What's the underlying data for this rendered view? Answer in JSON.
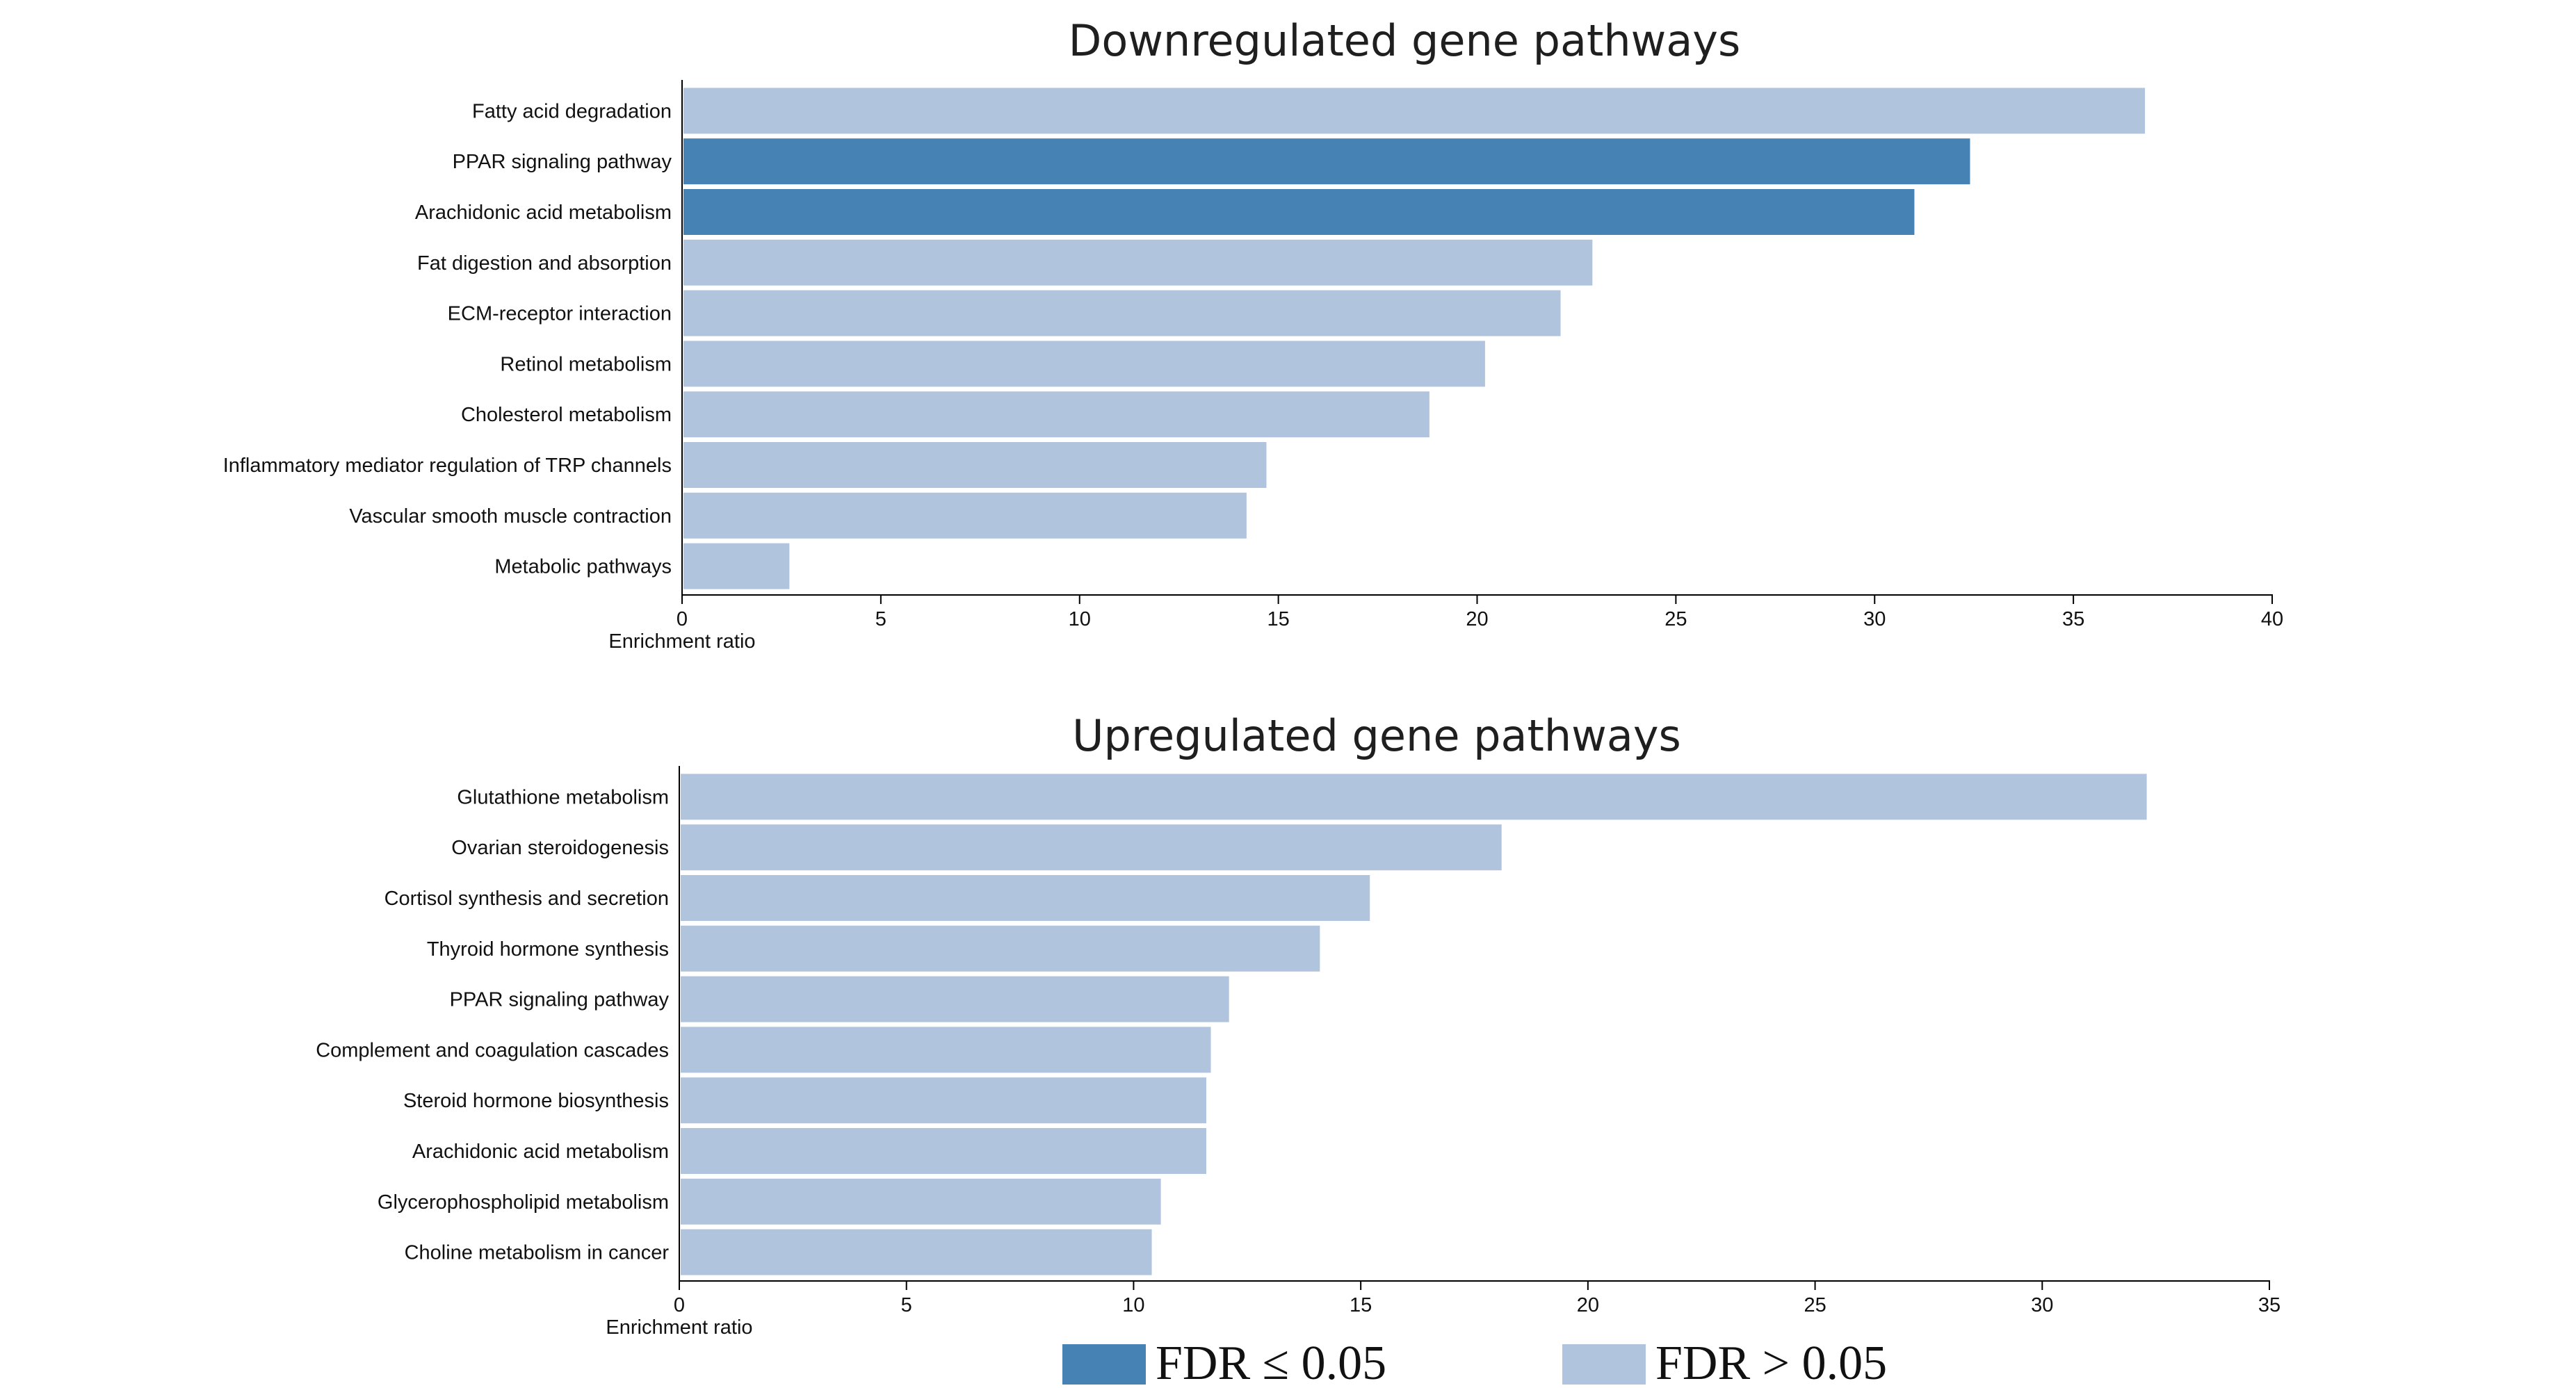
{
  "colors": {
    "significant": "#4682b4",
    "not_significant": "#b0c4de",
    "axis": "#000000",
    "text": "#111111"
  },
  "legend": {
    "placement": "bottom-center",
    "items": [
      {
        "label": "FDR ≤ 0.05",
        "color_key": "significant"
      },
      {
        "label": "FDR > 0.05",
        "color_key": "not_significant"
      }
    ]
  },
  "chart_data": [
    {
      "type": "bar",
      "orientation": "horizontal",
      "title": "Downregulated gene pathways",
      "xlabel": "Enrichment ratio",
      "ylabel": "",
      "xlim": [
        0,
        40
      ],
      "xticks": [
        0,
        5,
        10,
        15,
        20,
        25,
        30,
        35,
        40
      ],
      "grid": false,
      "categories": [
        "Fatty acid degradation",
        "PPAR signaling pathway",
        "Arachidonic acid metabolism",
        "Fat digestion and absorption",
        "ECM-receptor interaction",
        "Retinol metabolism",
        "Cholesterol metabolism",
        "Inflammatory mediator regulation of TRP channels",
        "Vascular smooth muscle contraction",
        "Metabolic pathways"
      ],
      "values": [
        36.8,
        32.4,
        31.0,
        22.9,
        22.1,
        20.2,
        18.8,
        14.7,
        14.2,
        2.7
      ],
      "fdr_significant": [
        false,
        true,
        true,
        false,
        false,
        false,
        false,
        false,
        false,
        false
      ]
    },
    {
      "type": "bar",
      "orientation": "horizontal",
      "title": "Upregulated gene pathways",
      "xlabel": "Enrichment ratio",
      "ylabel": "",
      "xlim": [
        0,
        35
      ],
      "xticks": [
        0,
        5,
        10,
        15,
        20,
        25,
        30,
        35
      ],
      "grid": false,
      "categories": [
        "Glutathione metabolism",
        "Ovarian steroidogenesis",
        "Cortisol synthesis and secretion",
        "Thyroid hormone synthesis",
        "PPAR signaling pathway",
        "Complement and coagulation cascades",
        "Steroid hormone biosynthesis",
        "Arachidonic acid metabolism",
        "Glycerophospholipid metabolism",
        "Choline metabolism in cancer"
      ],
      "values": [
        32.3,
        18.1,
        15.2,
        14.1,
        12.1,
        11.7,
        11.6,
        11.6,
        10.6,
        10.4
      ],
      "fdr_significant": [
        false,
        false,
        false,
        false,
        false,
        false,
        false,
        false,
        false,
        false
      ]
    }
  ]
}
